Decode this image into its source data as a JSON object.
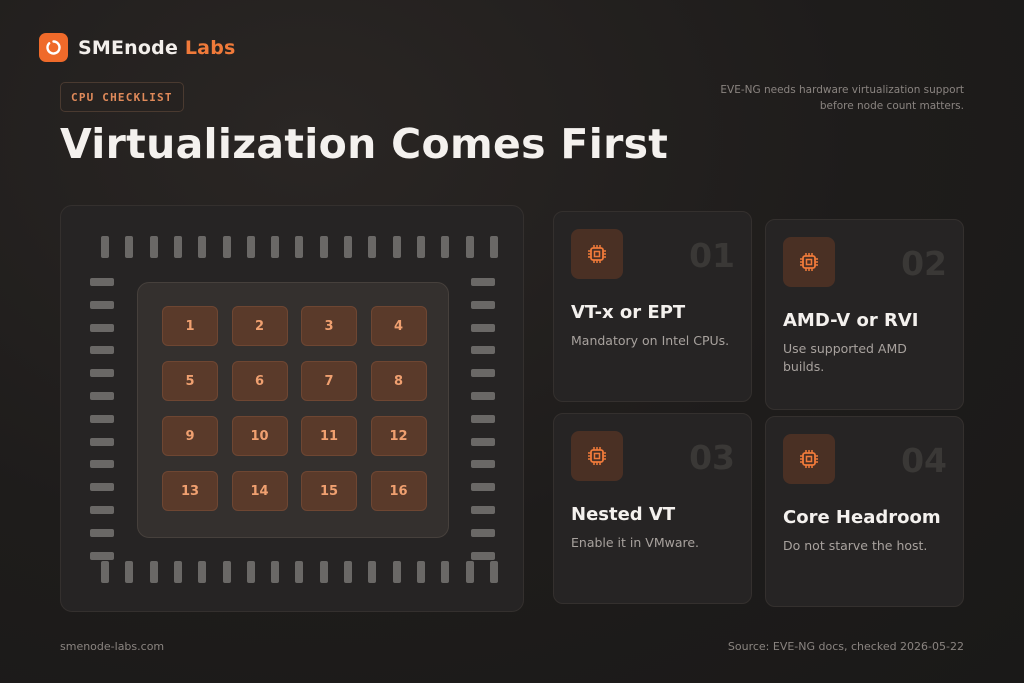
{
  "brand": {
    "name_main": "SMEnode",
    "name_accent": "Labs",
    "logo_icon": "power-ring-icon",
    "accent_color": "#ef6a2a"
  },
  "tag": "CPU CHECKLIST",
  "note": "EVE-NG needs hardware virtualization support before node count matters.",
  "title": "Virtualization Comes First",
  "chip": {
    "icon": "cpu-chip-icon",
    "cores": [
      "1",
      "2",
      "3",
      "4",
      "5",
      "6",
      "7",
      "8",
      "9",
      "10",
      "11",
      "12",
      "13",
      "14",
      "15",
      "16"
    ]
  },
  "cards": [
    {
      "num": "01",
      "title": "VT-x or EPT",
      "desc": "Mandatory on Intel CPUs.",
      "icon": "cpu-icon"
    },
    {
      "num": "02",
      "title": "AMD-V or RVI",
      "desc": "Use supported AMD builds.",
      "icon": "cpu-icon"
    },
    {
      "num": "03",
      "title": "Nested VT",
      "desc": "Enable it in VMware.",
      "icon": "cpu-icon"
    },
    {
      "num": "04",
      "title": "Core Headroom",
      "desc": "Do not starve the host.",
      "icon": "cpu-icon"
    }
  ],
  "footer": {
    "website": "smenode-labs.com",
    "source": "Source: EVE-NG docs, checked 2026-05-22"
  }
}
